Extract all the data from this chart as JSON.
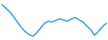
{
  "values": [
    95,
    88,
    80,
    70,
    58,
    47,
    38,
    32,
    28,
    35,
    45,
    55,
    60,
    58,
    62,
    65,
    62,
    60,
    65,
    68,
    63,
    58,
    50,
    42,
    30,
    38,
    48,
    55
  ],
  "line_color": "#3a9fd4",
  "background_color": "#ffffff",
  "linewidth": 1.1
}
